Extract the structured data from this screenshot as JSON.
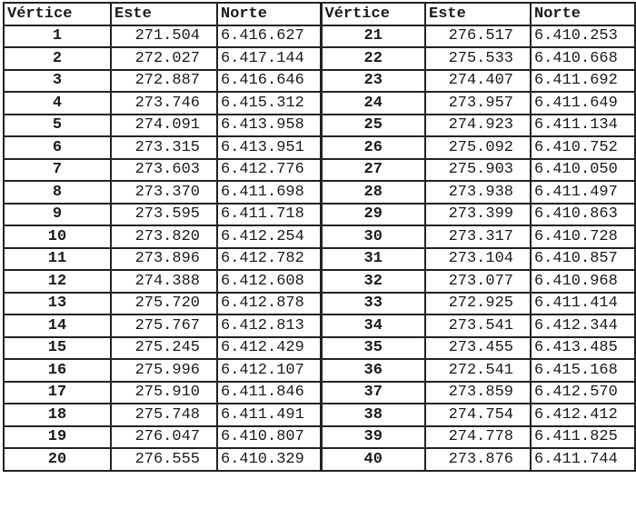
{
  "headers": [
    "Vértice",
    "Este",
    "Norte",
    "Vértice",
    "Este",
    "Norte"
  ],
  "rows_left": [
    [
      "1",
      "271.504",
      "6.416.627"
    ],
    [
      "2",
      "272.027",
      "6.417.144"
    ],
    [
      "3",
      "272.887",
      "6.416.646"
    ],
    [
      "4",
      "273.746",
      "6.415.312"
    ],
    [
      "5",
      "274.091",
      "6.413.958"
    ],
    [
      "6",
      "273.315",
      "6.413.951"
    ],
    [
      "7",
      "273.603",
      "6.412.776"
    ],
    [
      "8",
      "273.370",
      "6.411.698"
    ],
    [
      "9",
      "273.595",
      "6.411.718"
    ],
    [
      "10",
      "273.820",
      "6.412.254"
    ],
    [
      "11",
      "273.896",
      "6.412.782"
    ],
    [
      "12",
      "274.388",
      "6.412.608"
    ],
    [
      "13",
      "275.720",
      "6.412.878"
    ],
    [
      "14",
      "275.767",
      "6.412.813"
    ],
    [
      "15",
      "275.245",
      "6.412.429"
    ],
    [
      "16",
      "275.996",
      "6.412.107"
    ],
    [
      "17",
      "275.910",
      "6.411.846"
    ],
    [
      "18",
      "275.748",
      "6.411.491"
    ],
    [
      "19",
      "276.047",
      "6.410.807"
    ],
    [
      "20",
      "276.555",
      "6.410.329"
    ]
  ],
  "rows_right": [
    [
      "21",
      "276.517",
      "6.410.253"
    ],
    [
      "22",
      "275.533",
      "6.410.668"
    ],
    [
      "23",
      "274.407",
      "6.411.692"
    ],
    [
      "24",
      "273.957",
      "6.411.649"
    ],
    [
      "25",
      "274.923",
      "6.411.134"
    ],
    [
      "26",
      "275.092",
      "6.410.752"
    ],
    [
      "27",
      "275.903",
      "6.410.050"
    ],
    [
      "28",
      "273.938",
      "6.411.497"
    ],
    [
      "29",
      "273.399",
      "6.410.863"
    ],
    [
      "30",
      "273.317",
      "6.410.728"
    ],
    [
      "31",
      "273.104",
      "6.410.857"
    ],
    [
      "32",
      "273.077",
      "6.410.968"
    ],
    [
      "33",
      "272.925",
      "6.411.414"
    ],
    [
      "34",
      "273.541",
      "6.412.344"
    ],
    [
      "35",
      "273.455",
      "6.413.485"
    ],
    [
      "36",
      "272.541",
      "6.415.168"
    ],
    [
      "37",
      "273.859",
      "6.412.570"
    ],
    [
      "38",
      "274.754",
      "6.412.412"
    ],
    [
      "39",
      "274.778",
      "6.411.825"
    ],
    [
      "40",
      "273.876",
      "6.411.744"
    ]
  ]
}
